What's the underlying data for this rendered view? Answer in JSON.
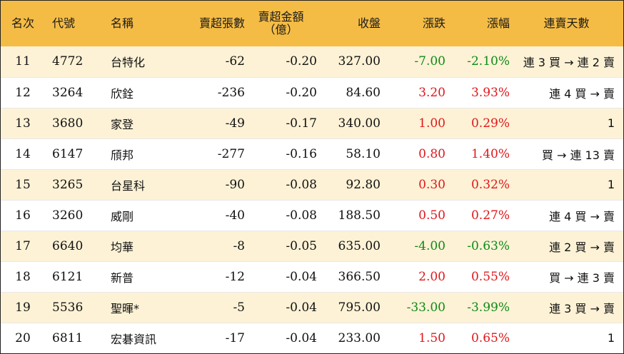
{
  "table": {
    "headers": {
      "rank": "名次",
      "code": "代號",
      "name": "名稱",
      "net_sell_lots": "賣超張數",
      "net_sell_amount_line1": "賣超金額",
      "net_sell_amount_line2": "（億）",
      "close": "收盤",
      "change": "漲跌",
      "change_pct": "漲幅",
      "streak": "連賣天數"
    },
    "rows": [
      {
        "rank": "11",
        "code": "4772",
        "name": "台特化",
        "net_sell_lots": "-62",
        "net_sell_amount": "-0.20",
        "close": "327.00",
        "change": "-7.00",
        "change_pct": "-2.10%",
        "direction": "down",
        "streak": "連 3 買 → 連 2 賣"
      },
      {
        "rank": "12",
        "code": "3264",
        "name": "欣銓",
        "net_sell_lots": "-236",
        "net_sell_amount": "-0.20",
        "close": "84.60",
        "change": "3.20",
        "change_pct": "3.93%",
        "direction": "up",
        "streak": "連 4 買 → 賣"
      },
      {
        "rank": "13",
        "code": "3680",
        "name": "家登",
        "net_sell_lots": "-49",
        "net_sell_amount": "-0.17",
        "close": "340.00",
        "change": "1.00",
        "change_pct": "0.29%",
        "direction": "up",
        "streak": "1"
      },
      {
        "rank": "14",
        "code": "6147",
        "name": "頎邦",
        "net_sell_lots": "-277",
        "net_sell_amount": "-0.16",
        "close": "58.10",
        "change": "0.80",
        "change_pct": "1.40%",
        "direction": "up",
        "streak": "買 → 連 13 賣"
      },
      {
        "rank": "15",
        "code": "3265",
        "name": "台星科",
        "net_sell_lots": "-90",
        "net_sell_amount": "-0.08",
        "close": "92.80",
        "change": "0.30",
        "change_pct": "0.32%",
        "direction": "up",
        "streak": "1"
      },
      {
        "rank": "16",
        "code": "3260",
        "name": "威剛",
        "net_sell_lots": "-40",
        "net_sell_amount": "-0.08",
        "close": "188.50",
        "change": "0.50",
        "change_pct": "0.27%",
        "direction": "up",
        "streak": "連 4 買 → 賣"
      },
      {
        "rank": "17",
        "code": "6640",
        "name": "均華",
        "net_sell_lots": "-8",
        "net_sell_amount": "-0.05",
        "close": "635.00",
        "change": "-4.00",
        "change_pct": "-0.63%",
        "direction": "down",
        "streak": "連 2 買 → 賣"
      },
      {
        "rank": "18",
        "code": "6121",
        "name": "新普",
        "net_sell_lots": "-12",
        "net_sell_amount": "-0.04",
        "close": "366.50",
        "change": "2.00",
        "change_pct": "0.55%",
        "direction": "up",
        "streak": "買 → 連 3 賣"
      },
      {
        "rank": "19",
        "code": "5536",
        "name": "聖暉*",
        "net_sell_lots": "-5",
        "net_sell_amount": "-0.04",
        "close": "795.00",
        "change": "-33.00",
        "change_pct": "-3.99%",
        "direction": "down",
        "streak": "連 3 買 → 賣"
      },
      {
        "rank": "20",
        "code": "6811",
        "name": "宏碁資訊",
        "net_sell_lots": "-17",
        "net_sell_amount": "-0.04",
        "close": "233.00",
        "change": "1.50",
        "change_pct": "0.65%",
        "direction": "up",
        "streak": "1"
      }
    ]
  },
  "colors": {
    "header_bg": "#f5bc45",
    "stripe_bg": "#fdf2d6",
    "up": "#e0171b",
    "down": "#0e8a16"
  }
}
